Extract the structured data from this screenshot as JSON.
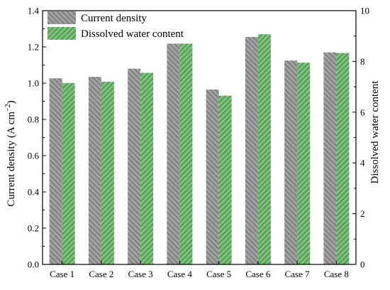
{
  "chart_data": {
    "type": "bar",
    "categories": [
      "Case 1",
      "Case 2",
      "Case 3",
      "Case 4",
      "Case 5",
      "Case 6",
      "Case 7",
      "Case 8"
    ],
    "series": [
      {
        "name": "Current density",
        "axis": "left",
        "values": [
          1.027,
          1.035,
          1.08,
          1.218,
          0.965,
          1.255,
          1.125,
          1.17
        ],
        "color": "#a0a0a0",
        "hatch_color": "#555555"
      },
      {
        "name": "Dissolved water content",
        "axis": "right",
        "values": [
          7.15,
          7.2,
          7.55,
          8.7,
          6.65,
          9.07,
          7.95,
          8.33
        ],
        "color": "#7cc07c",
        "hatch_color": "#1f6b1f"
      }
    ],
    "ylabel": "Current density (A cm",
    "ylabel_sup": "−2",
    "ylabel_tail": ")",
    "ylabel2": "Dissolved water content",
    "ylim": [
      0,
      1.4
    ],
    "ylim2": [
      0,
      10
    ],
    "yticks": [
      "0.0",
      "0.2",
      "0.4",
      "0.6",
      "0.8",
      "1.0",
      "1.2",
      "1.4"
    ],
    "yticks2": [
      "0",
      "2",
      "4",
      "6",
      "8",
      "10"
    ],
    "legend_position": "top-left",
    "grid": false
  }
}
